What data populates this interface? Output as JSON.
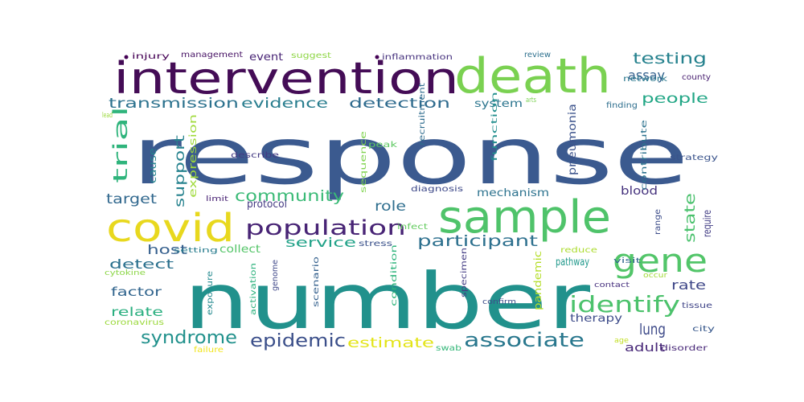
{
  "words": [
    {
      "text": "response",
      "color": "#3b5a8f"
    },
    {
      "text": "number",
      "color": "#21918c"
    },
    {
      "text": "intervention",
      "color": "#440c56"
    },
    {
      "text": "death",
      "color": "#7ad151"
    },
    {
      "text": "sample",
      "color": "#4fc36a"
    },
    {
      "text": "covid",
      "color": "#e8d81e"
    },
    {
      "text": "population",
      "color": "#482475"
    },
    {
      "text": "gene",
      "color": "#52c569"
    },
    {
      "text": "identify",
      "color": "#4cc26c"
    },
    {
      "text": "associate",
      "color": "#2a788e"
    },
    {
      "text": "epidemic",
      "color": "#3b4f8a"
    },
    {
      "text": "syndrome",
      "color": "#21918c"
    },
    {
      "text": "community",
      "color": "#3aba76"
    },
    {
      "text": "transmission",
      "color": "#2c728e"
    },
    {
      "text": "evidence",
      "color": "#287d8e"
    },
    {
      "text": "detection",
      "color": "#2f6b8e"
    },
    {
      "text": "testing",
      "color": "#26828e"
    },
    {
      "text": "assay",
      "color": "#34608d"
    },
    {
      "text": "people",
      "color": "#21a685"
    },
    {
      "text": "trial",
      "color": "#2fb47c"
    },
    {
      "text": "participant",
      "color": "#2d708e"
    },
    {
      "text": "lung",
      "color": "#3e4a89"
    },
    {
      "text": "estimate",
      "color": "#e3e418"
    },
    {
      "text": "target",
      "color": "#31688e"
    },
    {
      "text": "role",
      "color": "#2e6e8e"
    },
    {
      "text": "state",
      "color": "#4ac16d"
    },
    {
      "text": "support",
      "color": "#26828e"
    },
    {
      "text": "host",
      "color": "#355f8d"
    },
    {
      "text": "detect",
      "color": "#2c718e"
    },
    {
      "text": "factor",
      "color": "#32658e"
    },
    {
      "text": "relate",
      "color": "#29af7f"
    },
    {
      "text": "rate",
      "color": "#3f4788"
    },
    {
      "text": "service",
      "color": "#1fa187"
    },
    {
      "text": "protocol",
      "color": "#443983"
    },
    {
      "text": "mechanism",
      "color": "#2c728e"
    },
    {
      "text": "pathway",
      "color": "#1f988b"
    },
    {
      "text": "therapy",
      "color": "#3e4c8a"
    },
    {
      "text": "adult",
      "color": "#482878"
    },
    {
      "text": "collect",
      "color": "#54c568"
    },
    {
      "text": "event",
      "color": "#482475"
    },
    {
      "text": "system",
      "color": "#2b758e"
    },
    {
      "text": "blood",
      "color": "#46337e"
    },
    {
      "text": "require",
      "color": "#433e85"
    },
    {
      "text": "pneumonia",
      "color": "#3b528b"
    },
    {
      "text": "cause",
      "color": "#25848e"
    },
    {
      "text": "expression",
      "color": "#9fda3a"
    },
    {
      "text": "pandemic",
      "color": "#b5de2b"
    },
    {
      "text": "management",
      "color": "#471365"
    },
    {
      "text": "injury",
      "color": "#440154"
    },
    {
      "text": "suggest",
      "color": "#8ed645"
    },
    {
      "text": "inflammation",
      "color": "#46327e"
    },
    {
      "text": "review",
      "color": "#2d708e"
    },
    {
      "text": "network",
      "color": "#2a788e"
    },
    {
      "text": "county",
      "color": "#481f70"
    },
    {
      "text": "finding",
      "color": "#2e6f8e"
    },
    {
      "text": "lead",
      "color": "#9bd93c"
    },
    {
      "text": "contribute",
      "color": "#2c728e"
    },
    {
      "text": "strategy",
      "color": "#3a538b"
    },
    {
      "text": "describe",
      "color": "#443a83"
    },
    {
      "text": "peak",
      "color": "#5ec962"
    },
    {
      "text": "recruitment",
      "color": "#2f6c8e"
    },
    {
      "text": "function",
      "color": "#218e8d"
    },
    {
      "text": "sequence",
      "color": "#7fd34e"
    },
    {
      "text": "diagnosis",
      "color": "#3e4989"
    },
    {
      "text": "limit",
      "color": "#482173"
    },
    {
      "text": "infect",
      "color": "#63cb5f"
    },
    {
      "text": "stress",
      "color": "#3b528b"
    },
    {
      "text": "setting",
      "color": "#287c8e"
    },
    {
      "text": "reduce",
      "color": "#addc30"
    },
    {
      "text": "visit",
      "color": "#31668e"
    },
    {
      "text": "range",
      "color": "#3d4d8a"
    },
    {
      "text": "genome",
      "color": "#3f4889"
    },
    {
      "text": "scenario",
      "color": "#34608d"
    },
    {
      "text": "condition",
      "color": "#2fb47c"
    },
    {
      "text": "specimen",
      "color": "#433d84"
    },
    {
      "text": "cytokine",
      "color": "#8bd646"
    },
    {
      "text": "exposure",
      "color": "#23898e"
    },
    {
      "text": "activation",
      "color": "#2db27d"
    },
    {
      "text": "confirm",
      "color": "#3d4e8a"
    },
    {
      "text": "contact",
      "color": "#46307e"
    },
    {
      "text": "occur",
      "color": "#a2da37"
    },
    {
      "text": "age",
      "color": "#c2df23"
    },
    {
      "text": "tissue",
      "color": "#404588"
    },
    {
      "text": "city",
      "color": "#38588c"
    },
    {
      "text": "disorder",
      "color": "#482878"
    },
    {
      "text": "coronavirus",
      "color": "#9bd93c"
    },
    {
      "text": "failure",
      "color": "#f1e51d"
    },
    {
      "text": "swab",
      "color": "#35b779"
    },
    {
      "text": "arts",
      "color": "#7ad151"
    }
  ]
}
